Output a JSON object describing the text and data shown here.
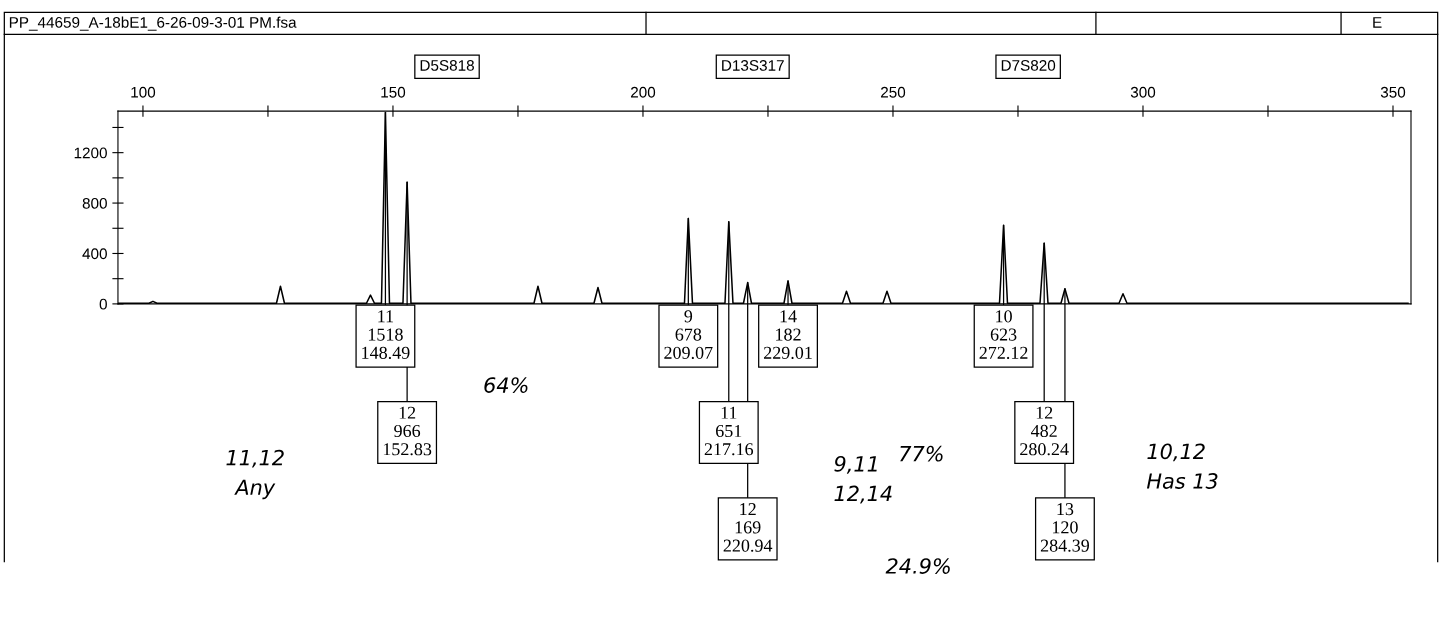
{
  "chart_data": {
    "type": "line",
    "x": [
      95,
      101.2,
      102,
      102.8,
      126.7,
      127.5,
      128.3,
      144.7,
      145.5,
      146.3,
      147.7,
      148.49,
      149.3,
      152,
      152.83,
      153.6,
      178.2,
      179,
      179.8,
      190.2,
      191,
      191.8,
      208.3,
      209.07,
      209.9,
      216.4,
      217.16,
      218,
      220.1,
      220.94,
      221.7,
      228.2,
      229.01,
      229.8,
      239.9,
      240.7,
      241.5,
      248,
      248.8,
      249.6,
      271.3,
      272.12,
      272.9,
      279.4,
      280.24,
      281,
      283.6,
      284.39,
      285.2,
      295.2,
      296,
      296.8,
      353
    ],
    "series": [
      {
        "color": "#000000",
        "values": [
          5,
          5,
          20,
          5,
          5,
          140,
          5,
          5,
          70,
          5,
          5,
          1518,
          5,
          5,
          966,
          5,
          5,
          140,
          5,
          5,
          130,
          5,
          5,
          678,
          5,
          5,
          651,
          5,
          5,
          169,
          5,
          5,
          182,
          5,
          5,
          100,
          5,
          5,
          100,
          5,
          5,
          623,
          5,
          5,
          482,
          5,
          5,
          120,
          5,
          5,
          80,
          5,
          5
        ]
      }
    ],
    "xlim": [
      95,
      353.6
    ],
    "ylim": [
      0,
      1530
    ],
    "xticks": [
      100,
      {
        "value": 125,
        "label": null
      },
      150,
      {
        "value": 175,
        "label": null
      },
      200,
      {
        "value": 225,
        "label": null
      },
      250,
      {
        "value": 275,
        "label": null
      },
      300,
      {
        "value": 325,
        "label": null
      },
      350
    ],
    "yticks": [
      0,
      {
        "value": 200,
        "label": null
      },
      400,
      {
        "value": 600,
        "label": null
      },
      800,
      {
        "value": 1000,
        "label": null
      },
      1200,
      {
        "value": 1400,
        "label": null
      }
    ],
    "grid": false,
    "legend": false,
    "marker": "none",
    "line_style": "solid",
    "annotations": [
      "PP_44659_A-18bE1_6-26-09-3-01 PM.fsa",
      "E",
      "D5S818",
      "D13S317",
      "D7S820",
      {
        "text": "11\n1518\n148.49",
        "x": 148.49,
        "y": 1518
      },
      {
        "text": "12\n966\n152.83",
        "x": 152.83,
        "y": 966
      },
      {
        "text": "9\n678\n209.07",
        "x": 209.07,
        "y": 678
      },
      {
        "text": "11\n651\n217.16",
        "x": 217.16,
        "y": 651
      },
      {
        "text": "12\n169\n220.94",
        "x": 220.94,
        "y": 169
      },
      {
        "text": "14\n182\n229.01",
        "x": 229.01,
        "y": 182
      },
      {
        "text": "10\n623\n272.12",
        "x": 272.12,
        "y": 623
      },
      {
        "text": "12\n482\n280.24",
        "x": 280.24,
        "y": 482
      },
      {
        "text": "13\n120\n284.39",
        "x": 284.39,
        "y": 120
      },
      "11,12\nAny",
      "64%",
      "9,11\n12,14",
      "77%",
      "10,12\nHas 13",
      "24.9%"
    ]
  }
}
